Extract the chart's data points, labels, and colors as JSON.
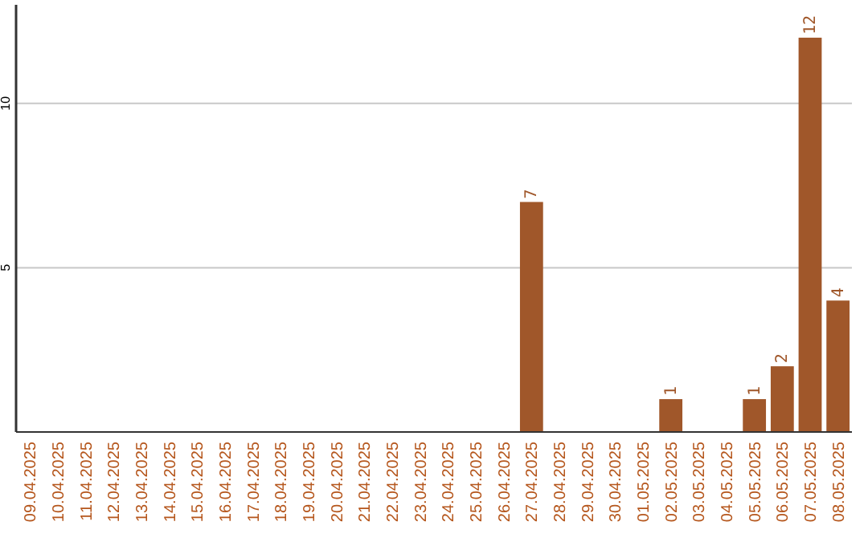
{
  "chart_data": {
    "type": "bar",
    "categories": [
      "09.04.2025",
      "10.04.2025",
      "11.04.2025",
      "12.04.2025",
      "13.04.2025",
      "14.04.2025",
      "15.04.2025",
      "16.04.2025",
      "17.04.2025",
      "18.04.2025",
      "19.04.2025",
      "20.04.2025",
      "21.04.2025",
      "22.04.2025",
      "23.04.2025",
      "24.04.2025",
      "25.04.2025",
      "26.04.2025",
      "27.04.2025",
      "28.04.2025",
      "29.04.2025",
      "30.04.2025",
      "01.05.2025",
      "02.05.2025",
      "03.05.2025",
      "04.05.2025",
      "05.05.2025",
      "06.05.2025",
      "07.05.2025",
      "08.05.2025"
    ],
    "values": [
      0,
      0,
      0,
      0,
      0,
      0,
      0,
      0,
      0,
      0,
      0,
      0,
      0,
      0,
      0,
      0,
      0,
      0,
      7,
      0,
      0,
      0,
      0,
      1,
      0,
      0,
      1,
      2,
      12,
      4
    ],
    "value_labels": [
      null,
      null,
      null,
      null,
      null,
      null,
      null,
      null,
      null,
      null,
      null,
      null,
      null,
      null,
      null,
      null,
      null,
      null,
      "7",
      null,
      null,
      null,
      null,
      "1",
      null,
      null,
      "1",
      "2",
      "12",
      "4"
    ],
    "color": "#a0572a",
    "ylim": [
      0,
      13
    ],
    "yticks": [
      5,
      10
    ],
    "grid": "y"
  }
}
